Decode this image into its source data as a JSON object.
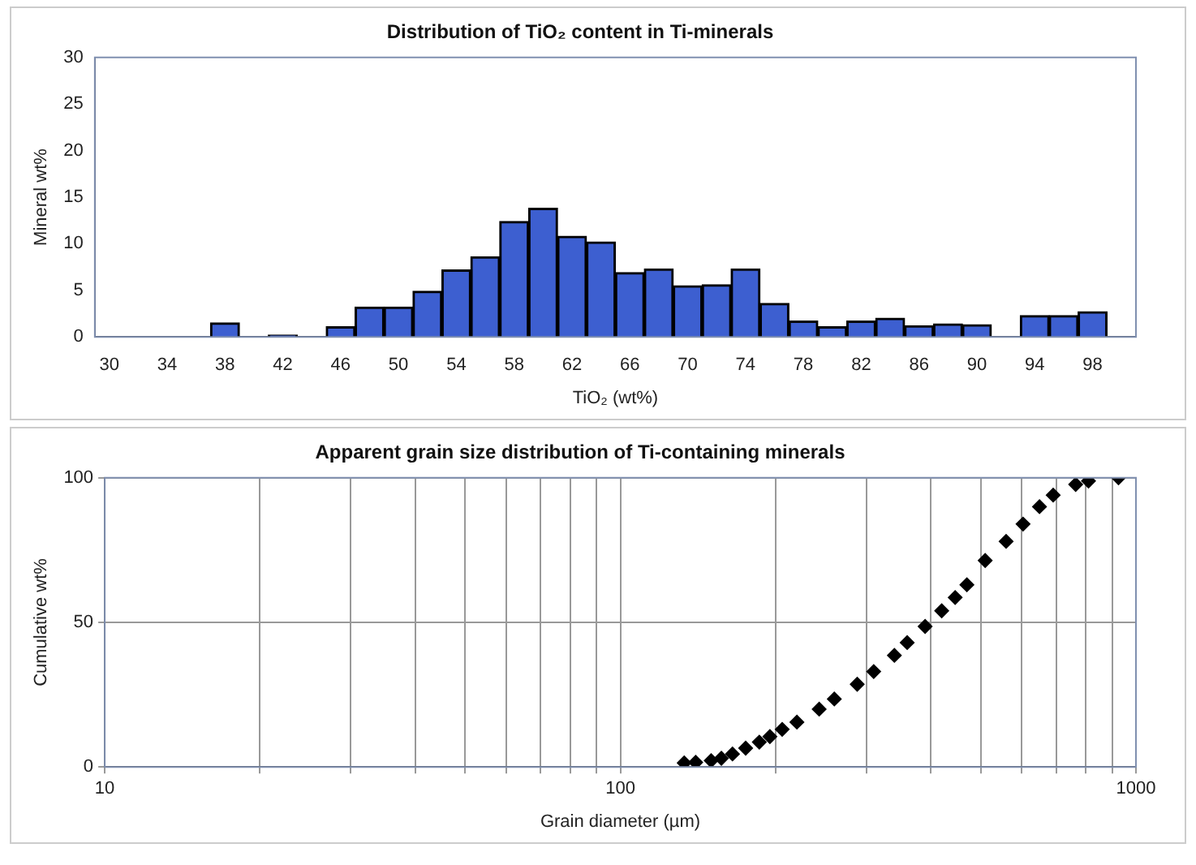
{
  "chart_data": [
    {
      "type": "bar",
      "title": "Distribution of TiO₂ content in Ti-minerals",
      "xlabel": "TiO₂ (wt%)",
      "ylabel": "Mineral wt%",
      "categories": [
        "30",
        null,
        "34",
        null,
        "38",
        null,
        "42",
        null,
        "46",
        null,
        "50",
        null,
        "54",
        null,
        "58",
        null,
        "62",
        null,
        "66",
        null,
        "70",
        null,
        "74",
        null,
        "78",
        null,
        "82",
        null,
        "86",
        null,
        "90",
        null,
        "94",
        null,
        "98",
        null
      ],
      "series": [
        {
          "color": "#3d5fd0",
          "values": [
            0,
            0,
            0,
            0,
            1.5,
            0,
            0.2,
            0,
            1.1,
            3.2,
            3.2,
            4.9,
            7.2,
            8.6,
            12.4,
            13.8,
            10.8,
            10.2,
            6.9,
            7.3,
            5.5,
            5.6,
            7.3,
            3.6,
            1.7,
            1.1,
            1.7,
            2,
            1.2,
            1.4,
            1.3,
            0,
            2.3,
            2.3,
            2.7,
            0
          ]
        }
      ],
      "ylim": [
        0,
        30
      ],
      "yticks": [
        0,
        5,
        10,
        15,
        20,
        25,
        30
      ],
      "grid": false,
      "legend": false
    },
    {
      "type": "scatter",
      "title": "Apparent grain size distribution of Ti-containing minerals",
      "xlabel": "Grain diameter (µm)",
      "ylabel": "Cumulative wt%",
      "log": "x",
      "marker": "diamond",
      "series": [
        {
          "color": "#000000",
          "x": [
            133,
            140,
            150,
            157,
            165,
            175,
            186,
            195,
            206,
            220,
            243,
            260,
            288,
            310,
            340,
            360,
            390,
            420,
            446,
            470,
            510,
            560,
            604,
            650,
            691,
            764,
            809,
            925
          ],
          "values": [
            1.4,
            1.6,
            2.2,
            3,
            4.5,
            6.5,
            8.6,
            10.5,
            13,
            15.5,
            20,
            23.5,
            28.6,
            33,
            38.6,
            43,
            48.6,
            54,
            58.6,
            63,
            71.4,
            78,
            84,
            90,
            94,
            97.7,
            98.9,
            100
          ]
        }
      ],
      "xlim": [
        10,
        1000
      ],
      "xticks": [
        10,
        {
          "value": 20,
          "label": null
        },
        {
          "value": 30,
          "label": null
        },
        {
          "value": 40,
          "label": null
        },
        {
          "value": 50,
          "label": null
        },
        {
          "value": 60,
          "label": null
        },
        {
          "value": 70,
          "label": null
        },
        {
          "value": 80,
          "label": null
        },
        {
          "value": 90,
          "label": null
        },
        100,
        {
          "value": 200,
          "label": null
        },
        {
          "value": 300,
          "label": null
        },
        {
          "value": 400,
          "label": null
        },
        {
          "value": 500,
          "label": null
        },
        {
          "value": 600,
          "label": null
        },
        {
          "value": 700,
          "label": null
        },
        {
          "value": 800,
          "label": null
        },
        {
          "value": 900,
          "label": null
        },
        1000
      ],
      "ylim": [
        0,
        100
      ],
      "yticks": [
        0,
        50,
        100
      ],
      "grid": true,
      "legend": false
    }
  ]
}
